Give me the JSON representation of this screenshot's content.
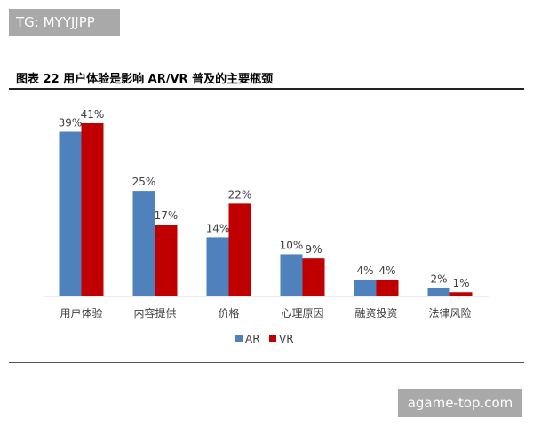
{
  "watermark_top": "TG: MYYJJPP",
  "watermark_bottom": "agame-top.com",
  "figure_title": "图表 22  用户体验是影响 AR/VR 普及的主要瓶颈",
  "colors": {
    "AR": "#4f81bd",
    "VR": "#c00000"
  },
  "chart_data": {
    "type": "bar",
    "categories": [
      "用户体验",
      "内容提供",
      "价格",
      "心理原因",
      "融资投资",
      "法律风险"
    ],
    "series": [
      {
        "name": "AR",
        "values": [
          39,
          25,
          14,
          10,
          4,
          2
        ],
        "labels": [
          "39%",
          "25%",
          "14%",
          "10%",
          "4%",
          "2%"
        ]
      },
      {
        "name": "VR",
        "values": [
          41,
          17,
          22,
          9,
          4,
          1
        ],
        "labels": [
          "41%",
          "17%",
          "22%",
          "9%",
          "4%",
          "1%"
        ]
      }
    ],
    "ylim": [
      0,
      41
    ],
    "grid": false,
    "legend_placement": "bottom-center"
  }
}
